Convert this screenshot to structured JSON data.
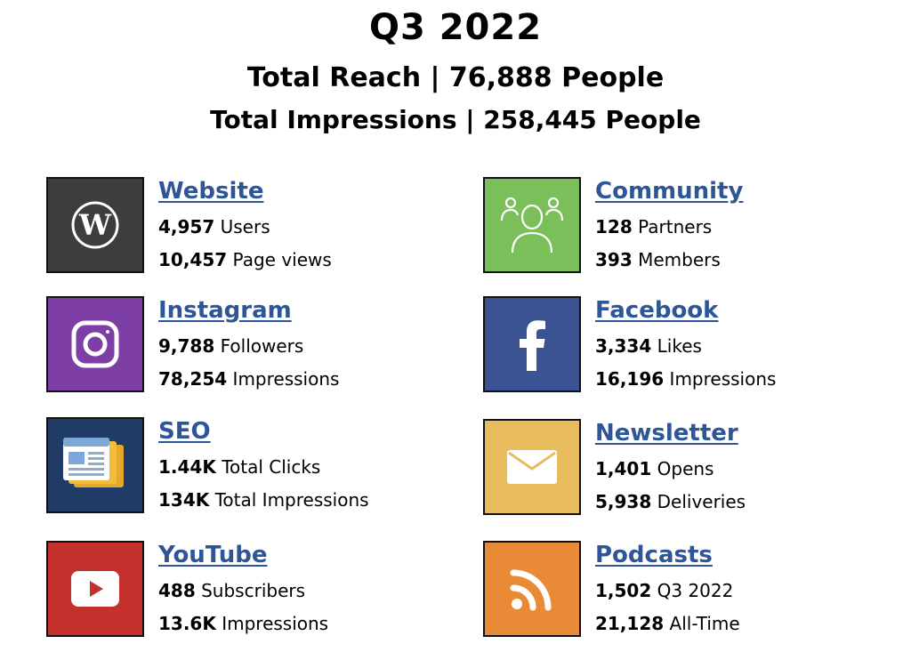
{
  "header": {
    "title": "Q3 2022",
    "reach": "Total Reach | 76,888 People",
    "impressions": "Total Impressions | 258,445 People"
  },
  "cards": [
    {
      "name": "Website",
      "icon": "wordpress-icon",
      "color": "#3d3d3d",
      "stats": [
        {
          "value": "4,957",
          "label": "Users"
        },
        {
          "value": "10,457",
          "label": "Page views"
        }
      ]
    },
    {
      "name": "Community",
      "icon": "community-people-icon",
      "color": "#7bbf5a",
      "stats": [
        {
          "value": "128",
          "label": "Partners"
        },
        {
          "value": "393",
          "label": "Members"
        }
      ]
    },
    {
      "name": "Instagram",
      "icon": "instagram-icon",
      "color": "#7d3ea6",
      "stats": [
        {
          "value": "9,788",
          "label": "Followers"
        },
        {
          "value": "78,254",
          "label": "Impressions"
        }
      ]
    },
    {
      "name": "Facebook",
      "icon": "facebook-icon",
      "color": "#3b5392",
      "stats": [
        {
          "value": "3,334",
          "label": "Likes"
        },
        {
          "value": "16,196",
          "label": "Impressions"
        }
      ]
    },
    {
      "name": "SEO",
      "icon": "newspaper-icon",
      "color": "#1f3b66",
      "stats": [
        {
          "value": "1.44K",
          "label": "Total Clicks"
        },
        {
          "value": "134K",
          "label": "Total Impressions"
        }
      ]
    },
    {
      "name": "Newsletter",
      "icon": "envelope-icon",
      "color": "#e9bd5e",
      "stats": [
        {
          "value": "1,401",
          "label": "Opens"
        },
        {
          "value": "5,938",
          "label": "Deliveries"
        }
      ]
    },
    {
      "name": "YouTube",
      "icon": "youtube-icon",
      "color": "#c4302b",
      "stats": [
        {
          "value": "488",
          "label": "Subscribers"
        },
        {
          "value": "13.6K",
          "label": "Impressions"
        }
      ]
    },
    {
      "name": "Podcasts",
      "icon": "rss-icon",
      "color": "#e98a36",
      "stats": [
        {
          "value": "1,502",
          "label": "Q3 2022"
        },
        {
          "value": "21,128",
          "label": "All-Time"
        }
      ]
    }
  ]
}
